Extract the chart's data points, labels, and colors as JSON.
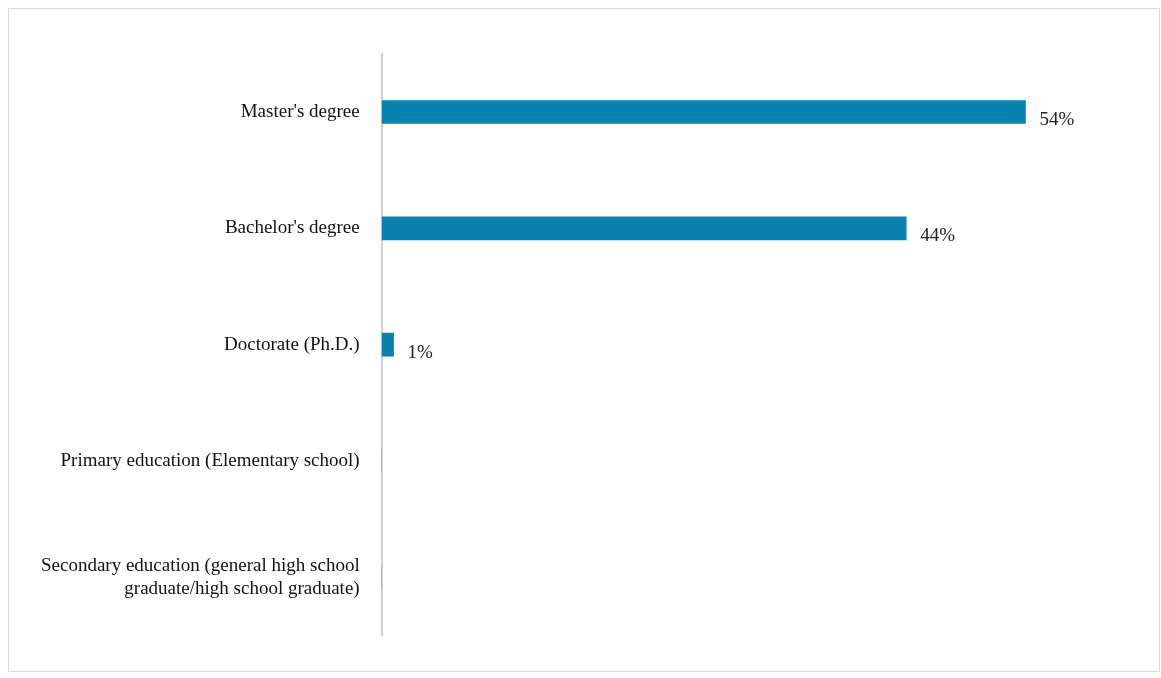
{
  "chart_data": {
    "type": "bar",
    "orientation": "horizontal",
    "categories": [
      "Master's degree",
      "Bachelor's degree",
      "Doctorate (Ph.D.)",
      "Primary education (Elementary school)",
      "Secondary education (general high school graduate/high school graduate)"
    ],
    "values": [
      54,
      44,
      1,
      0,
      0
    ],
    "value_labels": [
      "54%",
      "44%",
      "1%",
      null,
      null
    ],
    "color": "#0a82b0",
    "grid": false,
    "legend": false
  }
}
